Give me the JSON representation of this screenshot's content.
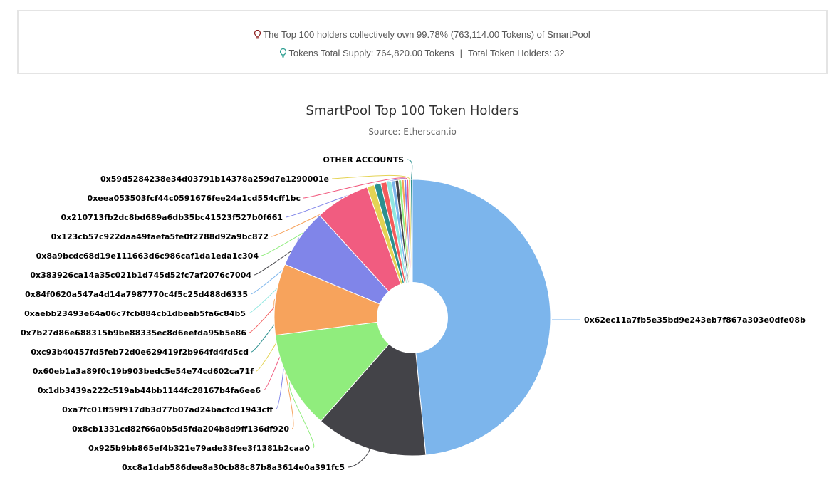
{
  "summary": {
    "line1": "The Top 100 holders collectively own 99.78% (763,114.00 Tokens) of SmartPool",
    "supply": "Tokens Total Supply: 764,820.00 Tokens",
    "separator": "|",
    "holders": "Total Token Holders: 32",
    "bulb1_icon": "lightbulb-red-icon",
    "bulb2_icon": "lightbulb-teal-icon"
  },
  "chart_data": {
    "type": "pie",
    "title": "SmartPool Top 100 Token Holders",
    "subtitle": "Source: Etherscan.io",
    "inner_hole": true,
    "slices": [
      {
        "label": "0x62ec11a7fb5e35bd9e243eb7f867a303e0dfe08b",
        "value": 50.0,
        "color": "#7cb5ec"
      },
      {
        "label": "0xc8a1dab586dee8a30cb88c87b8a3614e0a391fc5",
        "value": 13.5,
        "color": "#434348"
      },
      {
        "label": "0x925b9bb865ef4b321e79ade33fee3f1381b2caa0",
        "value": 11.8,
        "color": "#90ed7d"
      },
      {
        "label": "0x8cb1331cd82f66a0b5d5fda204b8d9ff136df920",
        "value": 8.6,
        "color": "#f7a35c"
      },
      {
        "label": "0xa7fc01ff59f917db3d77b07ad24bacfcd1943cff",
        "value": 7.2,
        "color": "#8085e9"
      },
      {
        "label": "0x1db3439a222c519ab44bb1144fc28167b4fa6ee6",
        "value": 6.6,
        "color": "#f15c80"
      },
      {
        "label": "0x60eb1a3a89f0c19b903bedc5e54e74cd602ca71f",
        "value": 0.9,
        "color": "#e4d354"
      },
      {
        "label": "0xc93b40457fd5feb72d0e629419f2b964fd4fd5cd",
        "value": 0.8,
        "color": "#2b908f"
      },
      {
        "label": "0x7b27d86e688315b9be88335ec8d6eefda95b5e86",
        "value": 0.7,
        "color": "#f45b5b"
      },
      {
        "label": "0xaebb23493e64a06c7fcb884cb1dbeab5fa6c84b5",
        "value": 0.6,
        "color": "#91e8e1"
      },
      {
        "label": "0x84f0620a547a4d14a7987770c4f5c25d488d6335",
        "value": 0.45,
        "color": "#7cb5ec"
      },
      {
        "label": "0x383926ca14a35c021b1d745d52fc7af2076c7004",
        "value": 0.4,
        "color": "#434348"
      },
      {
        "label": "0x8a9bcdc68d19e111663d6c986caf1da1eda1c304",
        "value": 0.35,
        "color": "#90ed7d"
      },
      {
        "label": "0x123cb57c922daa49faefa5fe0f2788d92a9bc872",
        "value": 0.3,
        "color": "#f7a35c"
      },
      {
        "label": "0x210713fb2dc8bd689a6db35bc41523f527b0f661",
        "value": 0.28,
        "color": "#8085e9"
      },
      {
        "label": "0xeea053503fcf44c0591676fee24a1cd554cff1bc",
        "value": 0.26,
        "color": "#f15c80"
      },
      {
        "label": "0x59d5284238e34d03791b14378a259d7e1290001e",
        "value": 0.24,
        "color": "#e4d354"
      },
      {
        "label": "OTHER ACCOUNTS",
        "value": 0.22,
        "color": "#2b908f"
      }
    ]
  }
}
